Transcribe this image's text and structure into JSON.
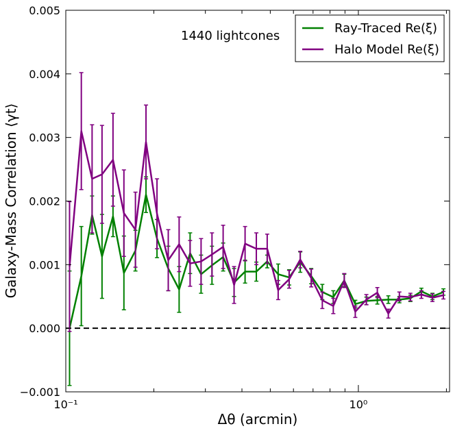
{
  "chart_data": {
    "type": "line",
    "annotation": "1440 lightcones",
    "xlabel": "Δθ (arcmin)",
    "ylabel": "Galaxy-Mass Correlation ⟨γt⟩",
    "xscale": "log",
    "xlim": [
      0.1,
      2.05
    ],
    "ylim": [
      -0.001,
      0.005
    ],
    "x_ticks": [
      {
        "value": 0.1,
        "label": "10⁻¹"
      },
      {
        "value": 1,
        "label": "10⁰"
      }
    ],
    "y_ticks": [
      {
        "value": -0.001,
        "label": "−0.001"
      },
      {
        "value": 0.0,
        "label": "0.000"
      },
      {
        "value": 0.001,
        "label": "0.001"
      },
      {
        "value": 0.002,
        "label": "0.002"
      },
      {
        "value": 0.003,
        "label": "0.003"
      },
      {
        "value": 0.004,
        "label": "0.004"
      },
      {
        "value": 0.005,
        "label": "0.005"
      }
    ],
    "reference_line": {
      "y": 0.0,
      "style": "dashed",
      "color": "#000000"
    },
    "legend_position": "top-right",
    "grid": false,
    "x": [
      0.103,
      0.113,
      0.123,
      0.133,
      0.145,
      0.158,
      0.173,
      0.188,
      0.205,
      0.224,
      0.244,
      0.266,
      0.29,
      0.316,
      0.345,
      0.376,
      0.41,
      0.448,
      0.488,
      0.532,
      0.58,
      0.633,
      0.69,
      0.753,
      0.821,
      0.895,
      0.976,
      1.065,
      1.161,
      1.266,
      1.381,
      1.506,
      1.642,
      1.791,
      1.953
    ],
    "series": [
      {
        "name": "Ray-Traced Re(ξ)",
        "color": "#008000",
        "values": [
          0.0,
          0.00082,
          0.00178,
          0.00113,
          0.00176,
          0.00087,
          0.00122,
          0.0021,
          0.00141,
          0.00094,
          0.00061,
          0.00118,
          0.00085,
          0.00099,
          0.00112,
          0.00072,
          0.00089,
          0.00089,
          0.00105,
          0.00085,
          0.0008,
          0.00104,
          0.00082,
          0.00057,
          0.00049,
          0.00075,
          0.00038,
          0.00043,
          0.00044,
          0.00045,
          0.00045,
          0.00047,
          0.00058,
          0.0005,
          0.00057
        ],
        "errors": [
          0.0009,
          0.00078,
          0.0003,
          0.00066,
          0.00032,
          0.00058,
          0.00032,
          0.00028,
          0.0003,
          0.00035,
          0.00036,
          0.00032,
          0.0003,
          0.0003,
          0.00022,
          0.00022,
          0.00018,
          0.00015,
          0.0001,
          0.00016,
          0.00012,
          0.00016,
          0.00012,
          0.00012,
          0.0001,
          0.0001,
          6e-05,
          6e-05,
          6e-05,
          6e-05,
          5e-05,
          5e-05,
          5e-05,
          5e-05,
          5e-05
        ]
      },
      {
        "name": "Halo Model Re(ξ)",
        "color": "#800080",
        "values": [
          0.00097,
          0.0031,
          0.00235,
          0.00242,
          0.00265,
          0.00181,
          0.00155,
          0.00293,
          0.0018,
          0.00107,
          0.00132,
          0.00102,
          0.00105,
          0.00116,
          0.00128,
          0.00068,
          0.00133,
          0.00125,
          0.00125,
          0.0006,
          0.00077,
          0.00108,
          0.00079,
          0.00044,
          0.00035,
          0.00075,
          0.00026,
          0.00045,
          0.00056,
          0.00023,
          0.0005,
          0.00049,
          0.00053,
          0.00048,
          0.00052
        ],
        "errors": [
          0.00102,
          0.00092,
          0.00085,
          0.00077,
          0.00073,
          0.00068,
          0.00059,
          0.00058,
          0.00055,
          0.00048,
          0.00043,
          0.00036,
          0.00036,
          0.00034,
          0.00034,
          0.00029,
          0.00027,
          0.00025,
          0.00023,
          0.00015,
          0.00014,
          0.00013,
          0.00014,
          0.00013,
          0.00012,
          0.00011,
          9e-05,
          8e-05,
          8e-05,
          7e-05,
          7e-05,
          6e-05,
          6e-05,
          6e-05,
          6e-05
        ]
      }
    ]
  }
}
